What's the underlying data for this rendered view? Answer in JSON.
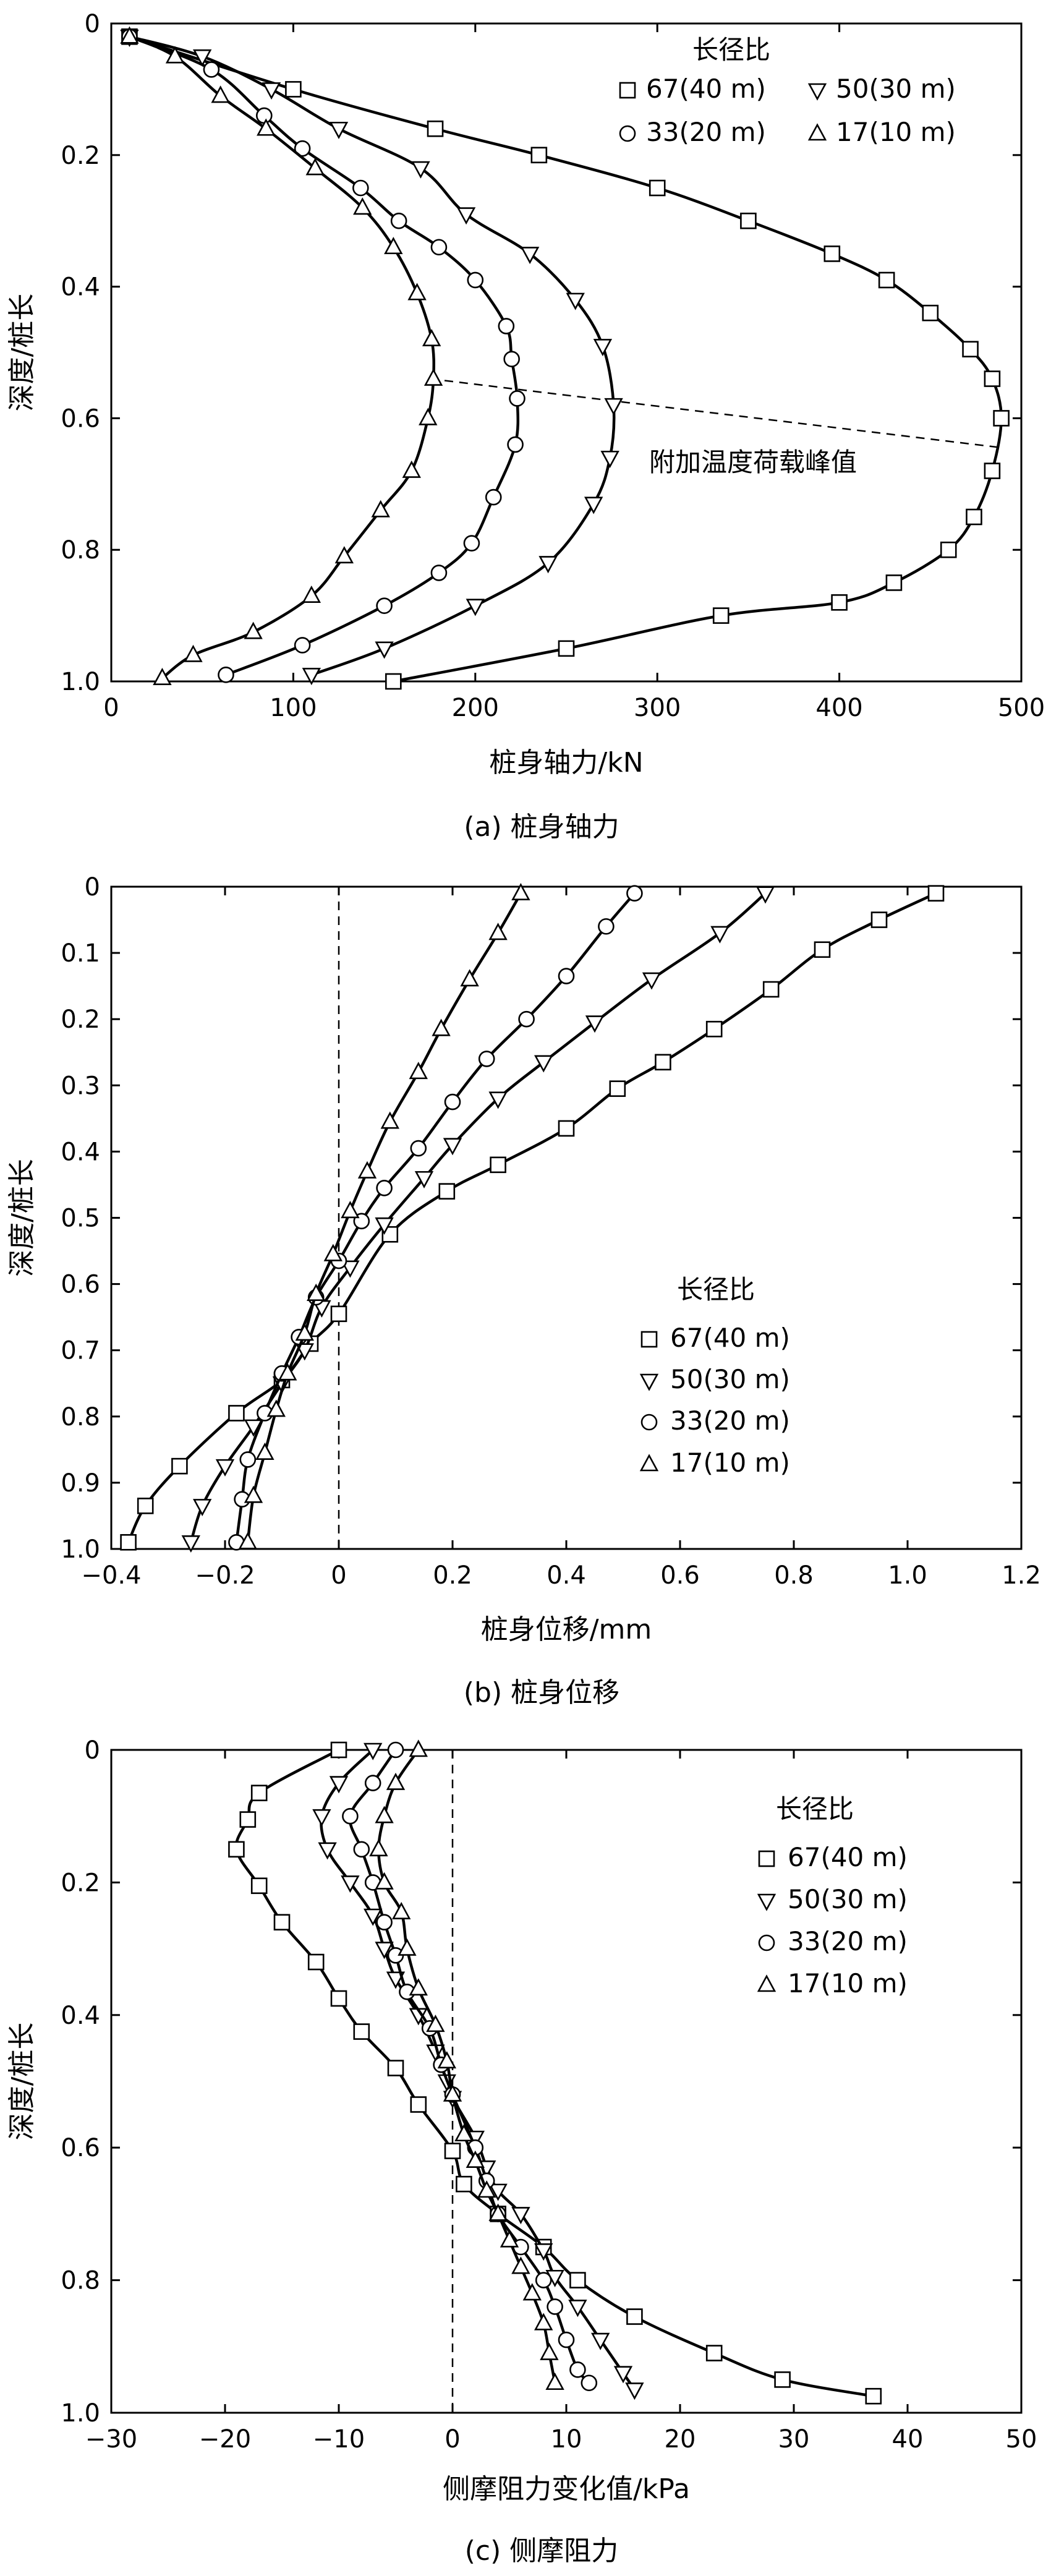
{
  "chart_data": [
    {
      "type": "line",
      "caption": "(a) 桩身轴力",
      "xlabel": "桩身轴力/kN",
      "ylabel": "深度/桩长",
      "xlim": [
        0,
        500
      ],
      "ylim": [
        0,
        1.0
      ],
      "xticks": [
        "0",
        "100",
        "200",
        "300",
        "400",
        "500"
      ],
      "yticks": [
        "0",
        "0.2",
        "0.4",
        "0.6",
        "0.8",
        "1.0"
      ],
      "legend_title": "长径比",
      "annotation": "附加温度荷载峰值",
      "peak_line": [
        {
          "x": 175,
          "y": 0.54
        },
        {
          "x": 490,
          "y": 0.645
        }
      ],
      "series": [
        {
          "name": "67(40 m)",
          "marker": "square",
          "points": [
            [
              10,
              0.02
            ],
            [
              100,
              0.1
            ],
            [
              178,
              0.16
            ],
            [
              235,
              0.2
            ],
            [
              300,
              0.25
            ],
            [
              350,
              0.3
            ],
            [
              396,
              0.35
            ],
            [
              426,
              0.39
            ],
            [
              450,
              0.44
            ],
            [
              472,
              0.495
            ],
            [
              484,
              0.54
            ],
            [
              489,
              0.6
            ],
            [
              484,
              0.68
            ],
            [
              474,
              0.75
            ],
            [
              460,
              0.8
            ],
            [
              430,
              0.85
            ],
            [
              400,
              0.88
            ],
            [
              335,
              0.9
            ],
            [
              250,
              0.95
            ],
            [
              155,
              1.0
            ]
          ]
        },
        {
          "name": "50(30 m)",
          "marker": "tri-down",
          "points": [
            [
              10,
              0.02
            ],
            [
              50,
              0.05
            ],
            [
              88,
              0.1
            ],
            [
              125,
              0.16
            ],
            [
              170,
              0.22
            ],
            [
              195,
              0.29
            ],
            [
              230,
              0.35
            ],
            [
              255,
              0.42
            ],
            [
              270,
              0.49
            ],
            [
              276,
              0.58
            ],
            [
              274,
              0.66
            ],
            [
              265,
              0.73
            ],
            [
              240,
              0.82
            ],
            [
              200,
              0.885
            ],
            [
              150,
              0.95
            ],
            [
              110,
              0.99
            ]
          ]
        },
        {
          "name": "33(20 m)",
          "marker": "circle",
          "points": [
            [
              10,
              0.02
            ],
            [
              55,
              0.07
            ],
            [
              84,
              0.14
            ],
            [
              105,
              0.19
            ],
            [
              137,
              0.25
            ],
            [
              158,
              0.3
            ],
            [
              180,
              0.34
            ],
            [
              200,
              0.39
            ],
            [
              217,
              0.46
            ],
            [
              220,
              0.51
            ],
            [
              223,
              0.57
            ],
            [
              222,
              0.64
            ],
            [
              210,
              0.72
            ],
            [
              198,
              0.79
            ],
            [
              180,
              0.835
            ],
            [
              150,
              0.885
            ],
            [
              105,
              0.945
            ],
            [
              63,
              0.99
            ]
          ]
        },
        {
          "name": "17(10 m)",
          "marker": "tri-up",
          "points": [
            [
              10,
              0.02
            ],
            [
              35,
              0.05
            ],
            [
              60,
              0.11
            ],
            [
              85,
              0.16
            ],
            [
              112,
              0.22
            ],
            [
              138,
              0.28
            ],
            [
              155,
              0.34
            ],
            [
              168,
              0.41
            ],
            [
              176,
              0.48
            ],
            [
              177,
              0.54
            ],
            [
              174,
              0.6
            ],
            [
              165,
              0.68
            ],
            [
              148,
              0.74
            ],
            [
              128,
              0.81
            ],
            [
              110,
              0.87
            ],
            [
              78,
              0.925
            ],
            [
              45,
              0.96
            ],
            [
              28,
              0.995
            ]
          ]
        }
      ]
    },
    {
      "type": "line",
      "caption": "(b) 桩身位移",
      "xlabel": "桩身位移/mm",
      "ylabel": "深度/桩长",
      "xlim": [
        -0.4,
        1.2
      ],
      "ylim": [
        0,
        1.0
      ],
      "xticks": [
        "−0.4",
        "−0.2",
        "0",
        "0.2",
        "0.4",
        "0.6",
        "0.8",
        "1.0",
        "1.2"
      ],
      "yticks": [
        "0",
        "0.1",
        "0.2",
        "0.3",
        "0.4",
        "0.5",
        "0.6",
        "0.7",
        "0.8",
        "0.9",
        "1.0"
      ],
      "legend_title": "长径比",
      "zero_line": 0,
      "series": [
        {
          "name": "67(40 m)",
          "marker": "square",
          "points": [
            [
              1.05,
              0.01
            ],
            [
              0.95,
              0.05
            ],
            [
              0.85,
              0.095
            ],
            [
              0.76,
              0.155
            ],
            [
              0.66,
              0.215
            ],
            [
              0.57,
              0.265
            ],
            [
              0.49,
              0.305
            ],
            [
              0.4,
              0.365
            ],
            [
              0.28,
              0.42
            ],
            [
              0.19,
              0.46
            ],
            [
              0.09,
              0.525
            ],
            [
              0.0,
              0.645
            ],
            [
              -0.05,
              0.69
            ],
            [
              -0.1,
              0.745
            ],
            [
              -0.18,
              0.795
            ],
            [
              -0.28,
              0.875
            ],
            [
              -0.34,
              0.935
            ],
            [
              -0.37,
              0.99
            ]
          ]
        },
        {
          "name": "50(30 m)",
          "marker": "tri-down",
          "points": [
            [
              0.75,
              0.01
            ],
            [
              0.67,
              0.07
            ],
            [
              0.55,
              0.14
            ],
            [
              0.45,
              0.205
            ],
            [
              0.36,
              0.265
            ],
            [
              0.28,
              0.32
            ],
            [
              0.2,
              0.39
            ],
            [
              0.15,
              0.44
            ],
            [
              0.08,
              0.51
            ],
            [
              0.02,
              0.575
            ],
            [
              -0.03,
              0.635
            ],
            [
              -0.06,
              0.7
            ],
            [
              -0.1,
              0.75
            ],
            [
              -0.15,
              0.815
            ],
            [
              -0.2,
              0.875
            ],
            [
              -0.24,
              0.935
            ],
            [
              -0.26,
              0.99
            ]
          ]
        },
        {
          "name": "33(20 m)",
          "marker": "circle",
          "points": [
            [
              0.52,
              0.01
            ],
            [
              0.47,
              0.06
            ],
            [
              0.4,
              0.135
            ],
            [
              0.33,
              0.2
            ],
            [
              0.26,
              0.26
            ],
            [
              0.2,
              0.325
            ],
            [
              0.14,
              0.395
            ],
            [
              0.08,
              0.455
            ],
            [
              0.04,
              0.505
            ],
            [
              0.0,
              0.565
            ],
            [
              -0.04,
              0.62
            ],
            [
              -0.07,
              0.68
            ],
            [
              -0.1,
              0.735
            ],
            [
              -0.13,
              0.795
            ],
            [
              -0.16,
              0.865
            ],
            [
              -0.17,
              0.925
            ],
            [
              -0.18,
              0.99
            ]
          ]
        },
        {
          "name": "17(10 m)",
          "marker": "tri-up",
          "points": [
            [
              0.32,
              0.01
            ],
            [
              0.28,
              0.07
            ],
            [
              0.23,
              0.14
            ],
            [
              0.18,
              0.215
            ],
            [
              0.14,
              0.28
            ],
            [
              0.09,
              0.355
            ],
            [
              0.05,
              0.43
            ],
            [
              0.02,
              0.49
            ],
            [
              -0.01,
              0.555
            ],
            [
              -0.04,
              0.615
            ],
            [
              -0.06,
              0.675
            ],
            [
              -0.09,
              0.735
            ],
            [
              -0.11,
              0.79
            ],
            [
              -0.13,
              0.855
            ],
            [
              -0.15,
              0.92
            ],
            [
              -0.16,
              0.99
            ]
          ]
        }
      ]
    },
    {
      "type": "line",
      "caption": "(c) 侧摩阻力",
      "xlabel": "侧摩阻力变化值/kPa",
      "ylabel": "深度/桩长",
      "xlim": [
        -30,
        50
      ],
      "ylim": [
        0,
        1.0
      ],
      "xticks": [
        "−30",
        "−20",
        "−10",
        "0",
        "10",
        "20",
        "30",
        "40",
        "50"
      ],
      "yticks": [
        "0",
        "0.2",
        "0.4",
        "0.6",
        "0.8",
        "1.0"
      ],
      "legend_title": "长径比",
      "zero_line": 0,
      "series": [
        {
          "name": "67(40 m)",
          "marker": "square",
          "points": [
            [
              -10,
              0.0
            ],
            [
              -17,
              0.065
            ],
            [
              -18,
              0.105
            ],
            [
              -19,
              0.15
            ],
            [
              -17,
              0.205
            ],
            [
              -15,
              0.26
            ],
            [
              -12,
              0.32
            ],
            [
              -10,
              0.375
            ],
            [
              -8,
              0.425
            ],
            [
              -5,
              0.48
            ],
            [
              -3,
              0.535
            ],
            [
              0,
              0.605
            ],
            [
              1,
              0.655
            ],
            [
              4,
              0.7
            ],
            [
              8,
              0.75
            ],
            [
              11,
              0.8
            ],
            [
              16,
              0.855
            ],
            [
              23,
              0.91
            ],
            [
              29,
              0.95
            ],
            [
              37,
              0.975
            ]
          ]
        },
        {
          "name": "50(30 m)",
          "marker": "tri-down",
          "points": [
            [
              -7,
              0.0
            ],
            [
              -10,
              0.05
            ],
            [
              -11.5,
              0.1
            ],
            [
              -11,
              0.15
            ],
            [
              -9,
              0.2
            ],
            [
              -7,
              0.25
            ],
            [
              -6,
              0.3
            ],
            [
              -5,
              0.345
            ],
            [
              -3,
              0.4
            ],
            [
              -1.5,
              0.455
            ],
            [
              -0.5,
              0.5
            ],
            [
              0,
              0.525
            ],
            [
              2,
              0.585
            ],
            [
              3,
              0.63
            ],
            [
              4,
              0.665
            ],
            [
              6,
              0.7
            ],
            [
              8,
              0.755
            ],
            [
              9,
              0.795
            ],
            [
              11,
              0.84
            ],
            [
              13,
              0.89
            ],
            [
              15,
              0.94
            ],
            [
              16,
              0.965
            ]
          ]
        },
        {
          "name": "33(20 m)",
          "marker": "circle",
          "points": [
            [
              -5,
              0.0
            ],
            [
              -7,
              0.05
            ],
            [
              -9,
              0.1
            ],
            [
              -8,
              0.15
            ],
            [
              -7,
              0.2
            ],
            [
              -6,
              0.26
            ],
            [
              -5,
              0.31
            ],
            [
              -4,
              0.365
            ],
            [
              -2,
              0.42
            ],
            [
              -1,
              0.475
            ],
            [
              0,
              0.52
            ],
            [
              2,
              0.6
            ],
            [
              3,
              0.65
            ],
            [
              4,
              0.7
            ],
            [
              6,
              0.75
            ],
            [
              8,
              0.8
            ],
            [
              9,
              0.84
            ],
            [
              10,
              0.89
            ],
            [
              11,
              0.935
            ],
            [
              12,
              0.955
            ]
          ]
        },
        {
          "name": "17(10 m)",
          "marker": "tri-up",
          "points": [
            [
              -3,
              0.0
            ],
            [
              -5,
              0.05
            ],
            [
              -6,
              0.1
            ],
            [
              -6.5,
              0.15
            ],
            [
              -6,
              0.2
            ],
            [
              -4.5,
              0.245
            ],
            [
              -4,
              0.3
            ],
            [
              -3,
              0.36
            ],
            [
              -1.5,
              0.415
            ],
            [
              -0.5,
              0.47
            ],
            [
              0,
              0.52
            ],
            [
              1,
              0.58
            ],
            [
              2,
              0.62
            ],
            [
              3,
              0.665
            ],
            [
              4,
              0.7
            ],
            [
              5,
              0.74
            ],
            [
              6,
              0.78
            ],
            [
              7,
              0.82
            ],
            [
              8,
              0.865
            ],
            [
              8.5,
              0.91
            ],
            [
              9,
              0.955
            ]
          ]
        }
      ]
    }
  ]
}
